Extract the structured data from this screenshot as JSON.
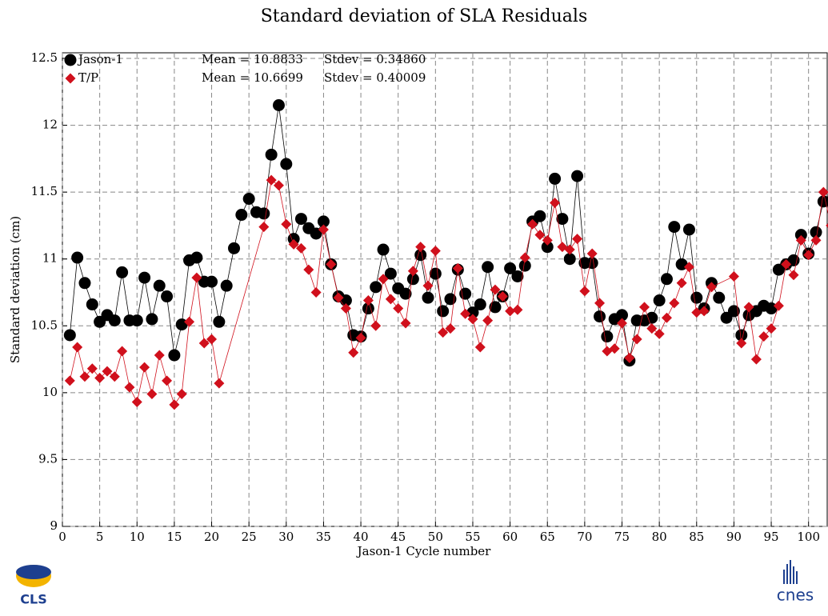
{
  "chart_data": {
    "type": "line",
    "title": "Standard deviation of SLA Residuals",
    "x_label": "Jason-1 Cycle number",
    "y_label": "Standard deviation (cm)",
    "xlim": [
      0,
      102.5
    ],
    "xticks": [
      0,
      5,
      10,
      15,
      20,
      25,
      30,
      35,
      40,
      45,
      50,
      55,
      60,
      65,
      70,
      75,
      80,
      85,
      90,
      95,
      100
    ],
    "ylim": [
      9,
      12.5
    ],
    "yticks": [
      9,
      9.5,
      10,
      10.5,
      11,
      11.5,
      12,
      12.5
    ],
    "grid": true,
    "series": [
      {
        "name": "Jason-1",
        "color": "#000000",
        "marker": "circle",
        "mean_label": "Mean = 10.8833",
        "stdev_label": "Stdev = 0.34860",
        "x": [
          1,
          2,
          3,
          4,
          5,
          6,
          7,
          8,
          9,
          10,
          11,
          12,
          13,
          14,
          15,
          16,
          17,
          18,
          19,
          20,
          21,
          22,
          23,
          24,
          25,
          26,
          27,
          28,
          29,
          30,
          31,
          32,
          33,
          34,
          35,
          36,
          37,
          38,
          39,
          40,
          41,
          42,
          43,
          44,
          45,
          46,
          47,
          48,
          49,
          50,
          51,
          52,
          53,
          54,
          55,
          56,
          57,
          58,
          59,
          60,
          61,
          62,
          63,
          64,
          65,
          66,
          67,
          68,
          69,
          70,
          71,
          72,
          73,
          74,
          75,
          76,
          77,
          78,
          79,
          80,
          81,
          82,
          83,
          84,
          85,
          86,
          87,
          88,
          89,
          90,
          91,
          92,
          93,
          94,
          95,
          96,
          97,
          98,
          99,
          100,
          101,
          102,
          103
        ],
        "values": [
          10.43,
          11.01,
          10.82,
          10.66,
          10.53,
          10.58,
          10.54,
          10.9,
          10.54,
          10.54,
          10.86,
          10.55,
          10.8,
          10.72,
          10.28,
          10.51,
          10.99,
          11.01,
          10.83,
          10.83,
          10.53,
          10.8,
          11.08,
          11.33,
          11.45,
          11.35,
          11.34,
          11.78,
          12.15,
          11.71,
          11.15,
          11.3,
          11.23,
          11.19,
          11.28,
          10.96,
          10.72,
          10.69,
          10.43,
          10.42,
          10.63,
          10.79,
          11.07,
          10.89,
          10.78,
          10.74,
          10.85,
          11.03,
          10.71,
          10.89,
          10.61,
          10.7,
          10.92,
          10.74,
          10.6,
          10.66,
          10.94,
          10.64,
          10.72,
          10.93,
          10.87,
          10.95,
          11.28,
          11.32,
          11.09,
          11.6,
          11.3,
          11.0,
          11.62,
          10.97,
          10.97,
          10.57,
          10.42,
          10.55,
          10.58,
          10.24,
          10.54,
          10.54,
          10.56,
          10.69,
          10.85,
          11.24,
          10.96,
          11.22,
          10.71,
          10.63,
          10.82,
          10.71,
          10.56,
          10.61,
          10.43,
          10.58,
          10.61,
          10.65,
          10.63,
          10.92,
          10.96,
          10.99,
          11.18,
          11.04,
          11.2,
          11.43,
          11.43
        ]
      },
      {
        "name": "T/P",
        "color": "#d0101c",
        "marker": "diamond",
        "mean_label": "Mean = 10.6699",
        "stdev_label": "Stdev = 0.40009",
        "x": [
          1,
          2,
          3,
          4,
          5,
          6,
          7,
          8,
          9,
          10,
          11,
          12,
          13,
          14,
          15,
          16,
          17,
          18,
          19,
          20,
          21,
          27,
          28,
          29,
          30,
          31,
          32,
          33,
          34,
          35,
          36,
          37,
          38,
          39,
          40,
          41,
          42,
          43,
          44,
          45,
          46,
          47,
          48,
          49,
          50,
          51,
          52,
          53,
          54,
          55,
          56,
          57,
          58,
          59,
          60,
          61,
          62,
          63,
          64,
          65,
          66,
          67,
          68,
          69,
          70,
          71,
          72,
          73,
          74,
          75,
          76,
          77,
          78,
          79,
          80,
          81,
          82,
          83,
          84,
          85,
          86,
          87,
          90,
          91,
          92,
          93,
          94,
          95,
          96,
          97,
          98,
          99,
          100,
          101,
          102,
          103
        ],
        "values": [
          10.09,
          10.34,
          10.12,
          10.18,
          10.11,
          10.16,
          10.12,
          10.31,
          10.04,
          9.93,
          10.19,
          9.99,
          10.28,
          10.09,
          9.91,
          9.99,
          10.53,
          10.86,
          10.37,
          10.4,
          10.07,
          11.24,
          11.59,
          11.55,
          11.26,
          11.11,
          11.08,
          10.92,
          10.75,
          11.22,
          10.96,
          10.71,
          10.63,
          10.3,
          10.41,
          10.69,
          10.5,
          10.85,
          10.7,
          10.63,
          10.52,
          10.91,
          11.09,
          10.8,
          11.06,
          10.45,
          10.48,
          10.93,
          10.59,
          10.55,
          10.34,
          10.54,
          10.77,
          10.72,
          10.61,
          10.62,
          11.01,
          11.26,
          11.18,
          11.14,
          11.42,
          11.09,
          11.07,
          11.15,
          10.76,
          11.04,
          10.67,
          10.31,
          10.33,
          10.52,
          10.26,
          10.4,
          10.64,
          10.48,
          10.44,
          10.56,
          10.67,
          10.82,
          10.94,
          10.6,
          10.61,
          10.79,
          10.87,
          10.37,
          10.64,
          10.25,
          10.42,
          10.48,
          10.65,
          10.96,
          10.88,
          11.14,
          11.03,
          11.14,
          11.5,
          11.25
        ]
      }
    ],
    "logos": [
      "CLS",
      "cnes"
    ]
  }
}
